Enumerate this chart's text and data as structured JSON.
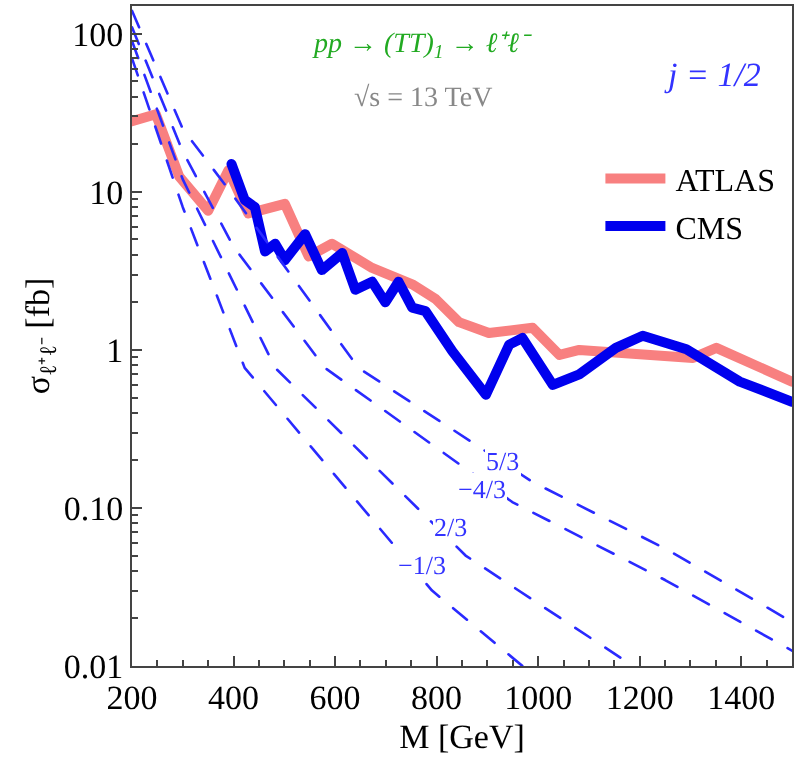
{
  "chart_data": {
    "type": "line",
    "xlabel": "M [GeV]",
    "ylabel": "σ$_{ℓ⁺ℓ⁻}$ [fb]",
    "annotations": [
      "pp → (TT)$_{1}$ → ℓ⁺ℓ⁻",
      "√s = 13 TeV",
      "j = 1/2",
      {
        "text": "5/3",
        "x": 930,
        "y": 0.2
      },
      {
        "text": "−4/3",
        "x": 890,
        "y": 0.13
      },
      {
        "text": "2/3",
        "x": 830,
        "y": 0.075
      },
      {
        "text": "−1/3",
        "x": 770,
        "y": 0.043
      }
    ],
    "log": "y",
    "xlim": [
      200,
      1500
    ],
    "ylim": [
      0.01,
      150
    ],
    "xticks": [
      200,
      400,
      600,
      800,
      1000,
      1200,
      1400
    ],
    "yticks": [
      {
        "value": 0.01,
        "label": "0.01"
      },
      {
        "value": 0.1,
        "label": "0.10"
      },
      1,
      10,
      100
    ],
    "legend": "top right",
    "marker": "none",
    "series": [
      {
        "name": "ATLAS",
        "color": "#f88080",
        "line_style": "solid",
        "x": [
          200,
          247,
          293,
          350,
          390,
          429,
          501,
          548,
          594,
          673,
          752,
          798,
          844,
          903,
          989,
          1042,
          1081,
          1305,
          1351,
          1500
        ],
        "values": [
          28,
          31,
          12.5,
          7.6,
          13.7,
          7.3,
          8.4,
          3.9,
          4.7,
          3.3,
          2.6,
          2.1,
          1.5,
          1.28,
          1.38,
          0.93,
          1.0,
          0.89,
          1.03,
          0.63
        ]
      },
      {
        "name": "CMS",
        "color": "#0000ee",
        "line_style": "solid",
        "x": [
          396,
          422,
          442,
          462,
          482,
          501,
          541,
          574,
          614,
          640,
          673,
          699,
          725,
          752,
          778,
          831,
          897,
          943,
          969,
          1029,
          1081,
          1153,
          1206,
          1292,
          1397,
          1500
        ],
        "values": [
          15,
          8.9,
          8.0,
          4.2,
          4.7,
          3.7,
          5.4,
          3.2,
          4.1,
          2.4,
          2.7,
          2.0,
          2.7,
          1.85,
          1.76,
          0.98,
          0.52,
          1.08,
          1.19,
          0.6,
          0.7,
          1.03,
          1.23,
          1.01,
          0.63,
          0.47
        ]
      },
      {
        "color": "#2a2aff",
        "line_style": "dashed",
        "x": [
          200,
          300,
          396,
          646,
          989,
          1252,
          1500
        ],
        "values": [
          140,
          25,
          9.8,
          0.77,
          0.146,
          0.055,
          0.019
        ]
      },
      {
        "color": "#2a2aff",
        "line_style": "dashed",
        "x": [
          200,
          300,
          400,
          580,
          949,
          1250,
          1500
        ],
        "values": [
          110,
          18,
          4.5,
          0.77,
          0.109,
          0.035,
          0.0125
        ]
      },
      {
        "color": "#2a2aff",
        "line_style": "dashed",
        "x": [
          200,
          300,
          482,
          857,
          1187
        ],
        "values": [
          90,
          12,
          0.77,
          0.05,
          0.01
        ]
      },
      {
        "color": "#2a2aff",
        "line_style": "dashed",
        "x": [
          200,
          300,
          422,
          791,
          969
        ],
        "values": [
          70,
          8,
          0.77,
          0.03,
          0.01
        ]
      }
    ]
  }
}
